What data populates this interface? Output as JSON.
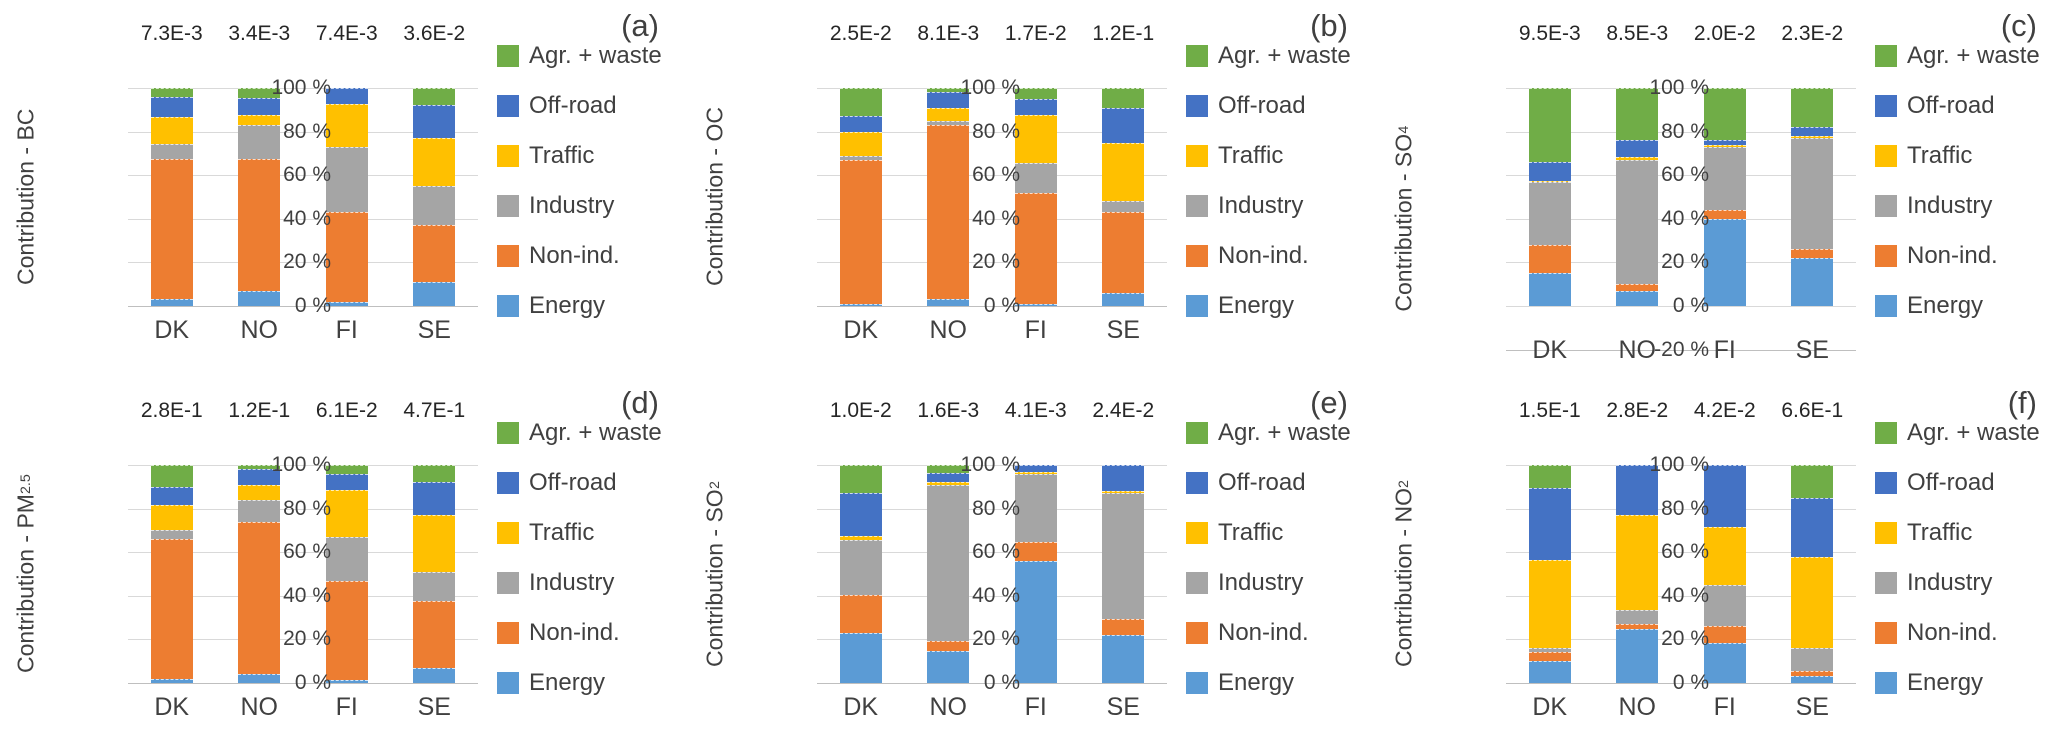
{
  "figure": {
    "text_color": "#404040",
    "gridline_color": "#d9d9d9",
    "axisline_color": "#bfbfbf"
  },
  "legend": [
    {
      "label": "Agr. + waste",
      "color": "#70AD47"
    },
    {
      "label": "Off-road",
      "color": "#4472C4"
    },
    {
      "label": "Traffic",
      "color": "#FFC000"
    },
    {
      "label": "Industry",
      "color": "#A5A5A5"
    },
    {
      "label": "Non-ind.",
      "color": "#ED7D31"
    },
    {
      "label": "Energy",
      "color": "#5B9BD5"
    }
  ],
  "series_colors": {
    "Energy": "#5B9BD5",
    "Non-ind.": "#ED7D31",
    "Industry": "#A5A5A5",
    "Traffic": "#FFC000",
    "Off-road": "#4472C4",
    "Agr. + waste": "#70AD47"
  },
  "chart_data": [
    {
      "type": "bar",
      "letter": "(a)",
      "ylabel": {
        "base": "Contribution - BC",
        "sub": ""
      },
      "values_above_bars": [
        "7.3E-3",
        "3.4E-3",
        "7.4E-3",
        "3.6E-2"
      ],
      "categories": [
        "DK",
        "NO",
        "FI",
        "SE"
      ],
      "y_min": 0,
      "y_max": 100,
      "y_step": 20,
      "y_ticks": [
        "100 %",
        "80 %",
        "60 %",
        "40 %",
        "20 %",
        "0 %"
      ],
      "series": [
        {
          "name": "Energy",
          "values": [
            3,
            7,
            2,
            11
          ]
        },
        {
          "name": "Non-ind.",
          "values": [
            64.5,
            60.5,
            41,
            26
          ]
        },
        {
          "name": "Industry",
          "values": [
            7,
            15.5,
            30,
            18
          ]
        },
        {
          "name": "Traffic",
          "values": [
            12,
            4.5,
            19.5,
            22
          ]
        },
        {
          "name": "Off-road",
          "values": [
            9.5,
            8,
            7.5,
            15
          ]
        },
        {
          "name": "Agr. + waste",
          "values": [
            4,
            4.5,
            0,
            8
          ]
        }
      ]
    },
    {
      "type": "bar",
      "letter": "(b)",
      "ylabel": {
        "base": "Contribution - OC",
        "sub": ""
      },
      "values_above_bars": [
        "2.5E-2",
        "8.1E-3",
        "1.7E-2",
        "1.2E-1"
      ],
      "categories": [
        "DK",
        "NO",
        "FI",
        "SE"
      ],
      "y_min": 0,
      "y_max": 100,
      "y_step": 20,
      "y_ticks": [
        "100 %",
        "80 %",
        "60 %",
        "40 %",
        "20 %",
        "0 %"
      ],
      "series": [
        {
          "name": "Energy",
          "values": [
            1,
            3,
            1,
            6
          ]
        },
        {
          "name": "Non-ind.",
          "values": [
            66,
            80,
            51,
            37
          ]
        },
        {
          "name": "Industry",
          "values": [
            2,
            2,
            13.5,
            5
          ]
        },
        {
          "name": "Traffic",
          "values": [
            11,
            6,
            22,
            27
          ]
        },
        {
          "name": "Off-road",
          "values": [
            7,
            7,
            7.5,
            16
          ]
        },
        {
          "name": "Agr. + waste",
          "values": [
            13,
            2,
            5,
            9
          ]
        }
      ]
    },
    {
      "type": "bar",
      "letter": "(c)",
      "ylabel": {
        "base": "Contribution - SO",
        "sub": "4"
      },
      "values_above_bars": [
        "9.5E-3",
        "8.5E-3",
        "2.0E-2",
        "2.3E-2"
      ],
      "categories": [
        "DK",
        "NO",
        "FI",
        "SE"
      ],
      "y_min": -20,
      "y_max": 100,
      "y_step": 20,
      "y_ticks": [
        "100 %",
        "80 %",
        "60 %",
        "40 %",
        "20 %",
        "0 %",
        "-20 %"
      ],
      "series": [
        {
          "name": "Energy",
          "values": [
            15,
            7,
            40,
            22
          ]
        },
        {
          "name": "Non-ind.",
          "values": [
            13,
            3,
            4,
            4
          ]
        },
        {
          "name": "Industry",
          "values": [
            29,
            57,
            29,
            51
          ]
        },
        {
          "name": "Traffic",
          "values": [
            0.5,
            1.5,
            1,
            1
          ]
        },
        {
          "name": "Off-road",
          "values": [
            8.5,
            7.5,
            2,
            4
          ]
        },
        {
          "name": "Agr. + waste",
          "values": [
            34,
            24,
            24,
            18
          ]
        }
      ]
    },
    {
      "type": "bar",
      "letter": "(d)",
      "ylabel": {
        "base": "Contribution - PM",
        "sub": "2.5"
      },
      "values_above_bars": [
        "2.8E-1",
        "1.2E-1",
        "6.1E-2",
        "4.7E-1"
      ],
      "categories": [
        "DK",
        "NO",
        "FI",
        "SE"
      ],
      "y_min": 0,
      "y_max": 100,
      "y_step": 20,
      "y_ticks": [
        "100 %",
        "80 %",
        "60 %",
        "40 %",
        "20 %",
        "0 %"
      ],
      "series": [
        {
          "name": "Energy",
          "values": [
            2,
            4,
            1.5,
            7
          ]
        },
        {
          "name": "Non-ind.",
          "values": [
            64,
            70,
            45.5,
            30.5
          ]
        },
        {
          "name": "Industry",
          "values": [
            4,
            10,
            20,
            13.5
          ]
        },
        {
          "name": "Traffic",
          "values": [
            11.5,
            7,
            21.5,
            26
          ]
        },
        {
          "name": "Off-road",
          "values": [
            8.5,
            7,
            7.5,
            15
          ]
        },
        {
          "name": "Agr. + waste",
          "values": [
            10,
            2,
            4,
            8
          ]
        }
      ]
    },
    {
      "type": "bar",
      "letter": "(e)",
      "ylabel": {
        "base": "Contribution - SO",
        "sub": "2"
      },
      "values_above_bars": [
        "1.0E-2",
        "1.6E-3",
        "4.1E-3",
        "2.4E-2"
      ],
      "categories": [
        "DK",
        "NO",
        "FI",
        "SE"
      ],
      "y_min": 0,
      "y_max": 100,
      "y_step": 20,
      "y_ticks": [
        "100 %",
        "80 %",
        "60 %",
        "40 %",
        "20 %",
        "0 %"
      ],
      "series": [
        {
          "name": "Energy",
          "values": [
            23,
            14.5,
            56,
            22
          ]
        },
        {
          "name": "Non-ind.",
          "values": [
            17.5,
            5,
            8.5,
            7.5
          ]
        },
        {
          "name": "Industry",
          "values": [
            25,
            71.5,
            31.5,
            57.5
          ]
        },
        {
          "name": "Traffic",
          "values": [
            2,
            1,
            1,
            1
          ]
        },
        {
          "name": "Off-road",
          "values": [
            19.5,
            4.5,
            3,
            12
          ]
        },
        {
          "name": "Agr. + waste",
          "values": [
            13,
            3.5,
            0,
            0
          ]
        }
      ]
    },
    {
      "type": "bar",
      "letter": "(f)",
      "ylabel": {
        "base": "Contribution - NO",
        "sub": "2"
      },
      "values_above_bars": [
        "1.5E-1",
        "2.8E-2",
        "4.2E-2",
        "6.6E-1"
      ],
      "categories": [
        "DK",
        "NO",
        "FI",
        "SE"
      ],
      "y_min": 0,
      "y_max": 100,
      "y_step": 20,
      "y_ticks": [
        "100 %",
        "80 %",
        "60 %",
        "40 %",
        "20 %",
        "0 %"
      ],
      "series": [
        {
          "name": "Energy",
          "values": [
            10,
            25,
            18.5,
            3
          ]
        },
        {
          "name": "Non-ind.",
          "values": [
            4,
            2,
            7.5,
            2.5
          ]
        },
        {
          "name": "Industry",
          "values": [
            2,
            6.5,
            19,
            10.5
          ]
        },
        {
          "name": "Traffic",
          "values": [
            40.5,
            43.5,
            26.5,
            42
          ]
        },
        {
          "name": "Off-road",
          "values": [
            33,
            23,
            28.5,
            27
          ]
        },
        {
          "name": "Agr. + waste",
          "values": [
            10.5,
            0,
            0,
            15
          ]
        }
      ]
    }
  ]
}
